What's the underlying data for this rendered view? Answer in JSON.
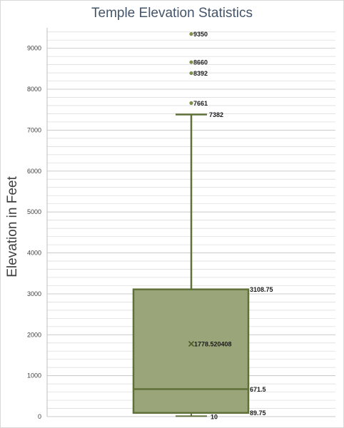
{
  "chart_data": {
    "type": "box",
    "title": "Temple Elevation Statistics",
    "xlabel": "",
    "ylabel": "Elevation in Feet",
    "ylim": [
      0,
      9500
    ],
    "yticks": [
      0,
      1000,
      2000,
      3000,
      4000,
      5000,
      6000,
      7000,
      8000,
      9000
    ],
    "minor_gridlines": true,
    "legend": "none",
    "series": [
      {
        "min": 10,
        "q1": 89.75,
        "median": 671.5,
        "mean": 1778.520408,
        "q3": 3108.75,
        "upper_whisker": 7382,
        "outliers": [
          7661,
          8392,
          8660,
          9350
        ],
        "labels": {
          "min": "10",
          "q1": "89.75",
          "median": "671.5",
          "mean": "1778.520408",
          "q3": "3108.75",
          "upper_whisker": "7382",
          "outliers": [
            "7661",
            "8392",
            "8660",
            "9350"
          ]
        }
      }
    ],
    "colors": {
      "box_fill": "#9aa67a",
      "box_stroke": "#5f7038",
      "outlier": "#7f8f4f",
      "gridline": "#d9d9d9",
      "axis": "#bfbfbf"
    }
  }
}
